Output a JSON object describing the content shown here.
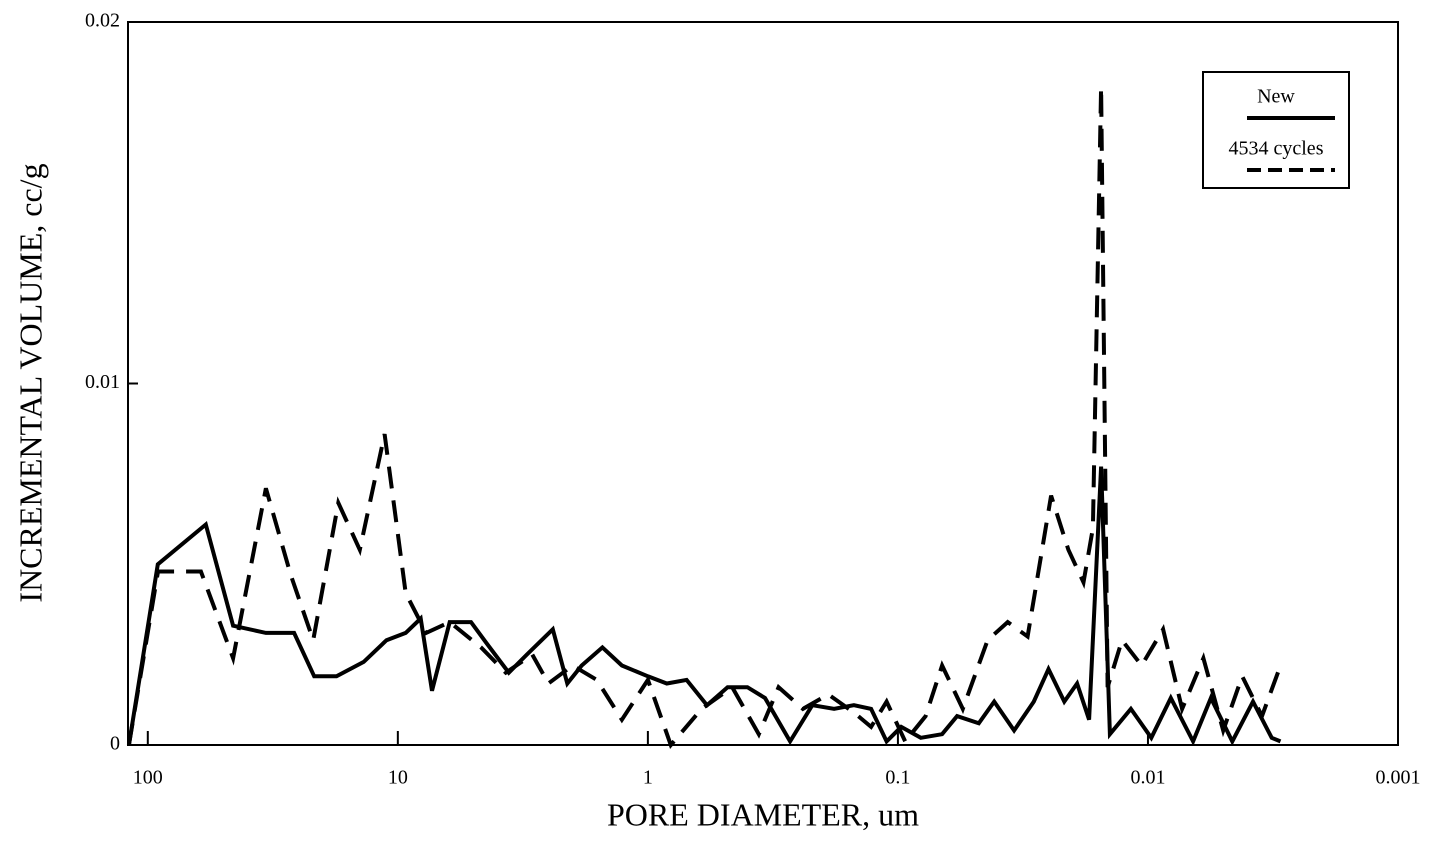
{
  "chart_data": {
    "type": "line",
    "xlabel": "PORE DIAMETER, um",
    "ylabel": "INCREMENTAL VOLUME, cc/g",
    "xscale": "log",
    "xlim": [
      120,
      0.001
    ],
    "xticks": [
      100,
      10,
      1,
      0.1,
      0.01,
      0.001
    ],
    "ylim": [
      0,
      0.02
    ],
    "yticks": [
      0,
      0.01,
      0.02
    ],
    "legend": "upper right",
    "series": [
      {
        "name": "New",
        "color": "#000000",
        "style": "solid",
        "x": [
          119,
          91.2,
          58.6,
          45.6,
          33.7,
          26,
          21.6,
          17.6,
          13.7,
          11.1,
          9.3,
          8.1,
          7.3,
          6.2,
          5.1,
          4.4,
          3.6,
          3.05,
          2.4,
          2.1,
          1.84,
          1.52,
          1.27,
          1.0,
          0.84,
          0.7,
          0.58,
          0.48,
          0.4,
          0.34,
          0.27,
          0.22,
          0.18,
          0.15,
          0.128,
          0.111,
          0.097,
          0.081,
          0.0666,
          0.058,
          0.0475,
          0.0412,
          0.0343,
          0.0286,
          0.025,
          0.0216,
          0.0192,
          0.0172,
          0.0154,
          0.0142,
          0.0117,
          0.0097,
          0.0081,
          0.0066,
          0.0056,
          0.0046,
          0.0038,
          0.0032,
          0.00295
        ],
        "values": [
          0,
          0.005,
          0.0061,
          0.0033,
          0.0031,
          0.0031,
          0.0019,
          0.0019,
          0.0023,
          0.0029,
          0.0031,
          0.0035,
          0.0015,
          0.0034,
          0.0034,
          0.0028,
          0.002,
          0.0025,
          0.0032,
          0.0017,
          0.0022,
          0.0027,
          0.0022,
          0.0019,
          0.0017,
          0.0018,
          0.0011,
          0.0016,
          0.0016,
          0.0013,
          0.0001,
          0.0011,
          0.001,
          0.0011,
          0.001,
          0.0001,
          0.0005,
          0.0002,
          0.0003,
          0.0008,
          0.0006,
          0.0012,
          0.0004,
          0.0012,
          0.0021,
          0.0012,
          0.0017,
          0.0007,
          0.0077,
          0.0003,
          0.001,
          0.0002,
          0.0013,
          0.0001,
          0.0013,
          0.0001,
          0.0012,
          0.0002,
          0.0001
        ]
      },
      {
        "name": "4534 cycles",
        "color": "#000000",
        "style": "dashed",
        "x": [
          119,
          91,
          61.3,
          45.6,
          33.7,
          26.8,
          21.8,
          17.3,
          14.2,
          11.3,
          9.3,
          7.7,
          6.2,
          4.65,
          3.7,
          2.9,
          2.5,
          2.0,
          1.6,
          1.27,
          1.0,
          0.81,
          0.61,
          0.46,
          0.36,
          0.3,
          0.24,
          0.19,
          0.15,
          0.128,
          0.111,
          0.0935,
          0.0775,
          0.0666,
          0.055,
          0.0438,
          0.0364,
          0.0303,
          0.0244,
          0.0208,
          0.0181,
          0.0166,
          0.0154,
          0.0145,
          0.0127,
          0.0106,
          0.0087,
          0.0073,
          0.006,
          0.005,
          0.0042,
          0.0035,
          0.00295
        ],
        "values": [
          0,
          0.0048,
          0.0048,
          0.0024,
          0.0071,
          0.0047,
          0.0029,
          0.0067,
          0.0054,
          0.0086,
          0.0042,
          0.0031,
          0.0034,
          0.0027,
          0.002,
          0.0025,
          0.0017,
          0.0022,
          0.0018,
          0.0007,
          0.0018,
          0,
          0.001,
          0.0016,
          0.0003,
          0.0016,
          0.001,
          0.0014,
          0.0009,
          0.0005,
          0.0012,
          0.0001,
          0.0008,
          0.0022,
          0.001,
          0.0029,
          0.0034,
          0.003,
          0.0069,
          0.0054,
          0.0045,
          0.006,
          0.0182,
          0.0016,
          0.0029,
          0.0022,
          0.0032,
          0.001,
          0.0024,
          0.0004,
          0.0019,
          0.0008,
          0.0022
        ]
      }
    ]
  }
}
